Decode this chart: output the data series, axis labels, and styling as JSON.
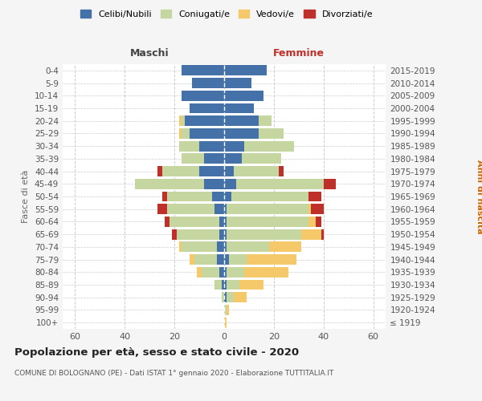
{
  "age_groups": [
    "100+",
    "95-99",
    "90-94",
    "85-89",
    "80-84",
    "75-79",
    "70-74",
    "65-69",
    "60-64",
    "55-59",
    "50-54",
    "45-49",
    "40-44",
    "35-39",
    "30-34",
    "25-29",
    "20-24",
    "15-19",
    "10-14",
    "5-9",
    "0-4"
  ],
  "birth_years": [
    "≤ 1919",
    "1920-1924",
    "1925-1929",
    "1930-1934",
    "1935-1939",
    "1940-1944",
    "1945-1949",
    "1950-1954",
    "1955-1959",
    "1960-1964",
    "1965-1969",
    "1970-1974",
    "1975-1979",
    "1980-1984",
    "1985-1989",
    "1990-1994",
    "1995-1999",
    "2000-2004",
    "2005-2009",
    "2010-2014",
    "2015-2019"
  ],
  "colors": {
    "celibe": "#4472a8",
    "coniugato": "#c5d6a0",
    "vedovo": "#f5c96a",
    "divorziato": "#c0302a"
  },
  "males": {
    "celibe": [
      0,
      0,
      0,
      1,
      2,
      3,
      3,
      2,
      2,
      4,
      5,
      8,
      10,
      8,
      10,
      14,
      16,
      14,
      17,
      13,
      17
    ],
    "coniugato": [
      0,
      0,
      1,
      3,
      7,
      9,
      14,
      17,
      20,
      19,
      18,
      28,
      15,
      9,
      8,
      3,
      1,
      0,
      0,
      0,
      0
    ],
    "vedovo": [
      0,
      0,
      0,
      0,
      2,
      2,
      1,
      0,
      0,
      0,
      0,
      0,
      0,
      0,
      0,
      1,
      1,
      0,
      0,
      0,
      0
    ],
    "divorziato": [
      0,
      0,
      0,
      0,
      0,
      0,
      0,
      2,
      2,
      4,
      2,
      0,
      2,
      0,
      0,
      0,
      0,
      0,
      0,
      0,
      0
    ]
  },
  "females": {
    "nubile": [
      0,
      0,
      1,
      1,
      1,
      2,
      1,
      1,
      1,
      1,
      3,
      5,
      4,
      7,
      8,
      14,
      14,
      12,
      16,
      11,
      17
    ],
    "coniugata": [
      0,
      1,
      3,
      5,
      7,
      7,
      17,
      30,
      33,
      33,
      31,
      35,
      18,
      16,
      20,
      10,
      5,
      0,
      0,
      0,
      0
    ],
    "vedova": [
      1,
      1,
      5,
      10,
      18,
      20,
      13,
      8,
      3,
      1,
      0,
      0,
      0,
      0,
      0,
      0,
      0,
      0,
      0,
      0,
      0
    ],
    "divorziata": [
      0,
      0,
      0,
      0,
      0,
      0,
      0,
      1,
      2,
      5,
      5,
      5,
      2,
      0,
      0,
      0,
      0,
      0,
      0,
      0,
      0
    ]
  },
  "xlim": [
    -65,
    65
  ],
  "xticks": [
    -60,
    -40,
    -20,
    0,
    20,
    40,
    60
  ],
  "xtick_labels": [
    "60",
    "40",
    "20",
    "0",
    "20",
    "40",
    "60"
  ],
  "title": "Popolazione per età, sesso e stato civile - 2020",
  "subtitle": "COMUNE DI BOLOGNANO (PE) - Dati ISTAT 1° gennaio 2020 - Elaborazione TUTTITALIA.IT",
  "ylabel_left": "Fasce di età",
  "ylabel_right": "Anni di nascita",
  "maschi_label": "Maschi",
  "femmine_label": "Femmine",
  "legend_labels": [
    "Celibi/Nubili",
    "Coniugati/e",
    "Vedovi/e",
    "Divorziati/e"
  ],
  "background_color": "#f5f5f5",
  "plot_background": "#ffffff",
  "grid_color": "#cccccc"
}
